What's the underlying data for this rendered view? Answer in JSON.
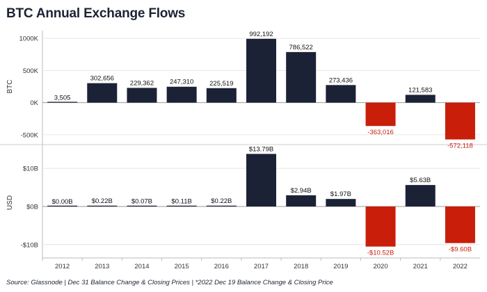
{
  "title": "BTC Annual Exchange Flows",
  "source": "Source: Glassnode | Dec 31 Balance Change & Closing Prices | *2022 Dec 19 Balance Change & Closing Price",
  "colors": {
    "positive": "#1c2236",
    "negative": "#c81e0a",
    "negative_label": "#c81e0a",
    "grid": "#e6e6e6",
    "axis": "#bbbbbb"
  },
  "chart_data": [
    {
      "type": "bar",
      "title": "BTC Annual Exchange Flows",
      "ylabel": "BTC",
      "ylim": [
        -620000,
        1120000
      ],
      "yticks": [
        1000000,
        500000,
        0,
        -500000
      ],
      "ytick_labels": [
        "1000K",
        "500K",
        "0K",
        "-500K"
      ],
      "categories": [
        "2012",
        "2013",
        "2014",
        "2015",
        "2016",
        "2017",
        "2018",
        "2019",
        "2020",
        "2021",
        "2022"
      ],
      "values": [
        3505,
        302656,
        229362,
        247310,
        225519,
        992192,
        786522,
        273436,
        -363016,
        121583,
        -572118
      ],
      "data_labels": [
        "3,505",
        "302,656",
        "229,362",
        "247,310",
        "225,519",
        "992,192",
        "786,522",
        "273,436",
        "-363,016",
        "121,583",
        "-572,118"
      ]
    },
    {
      "type": "bar",
      "title": "",
      "ylabel": "USD",
      "xlabel": "",
      "ylim": [
        -13.5,
        15.5
      ],
      "yticks": [
        10,
        0,
        -10
      ],
      "ytick_labels": [
        "$10B",
        "$0B",
        "-$10B"
      ],
      "categories": [
        "2012",
        "2013",
        "2014",
        "2015",
        "2016",
        "2017",
        "2018",
        "2019",
        "2020",
        "2021",
        "2022"
      ],
      "values": [
        0.0,
        0.22,
        0.07,
        0.11,
        0.22,
        13.79,
        2.94,
        1.97,
        -10.52,
        5.63,
        -9.6
      ],
      "data_labels": [
        "$0.00B",
        "$0.22B",
        "$0.07B",
        "$0.11B",
        "$0.22B",
        "$13.79B",
        "$2.94B",
        "$1.97B",
        "-$10.52B",
        "$5.63B",
        "-$9.60B"
      ]
    }
  ]
}
